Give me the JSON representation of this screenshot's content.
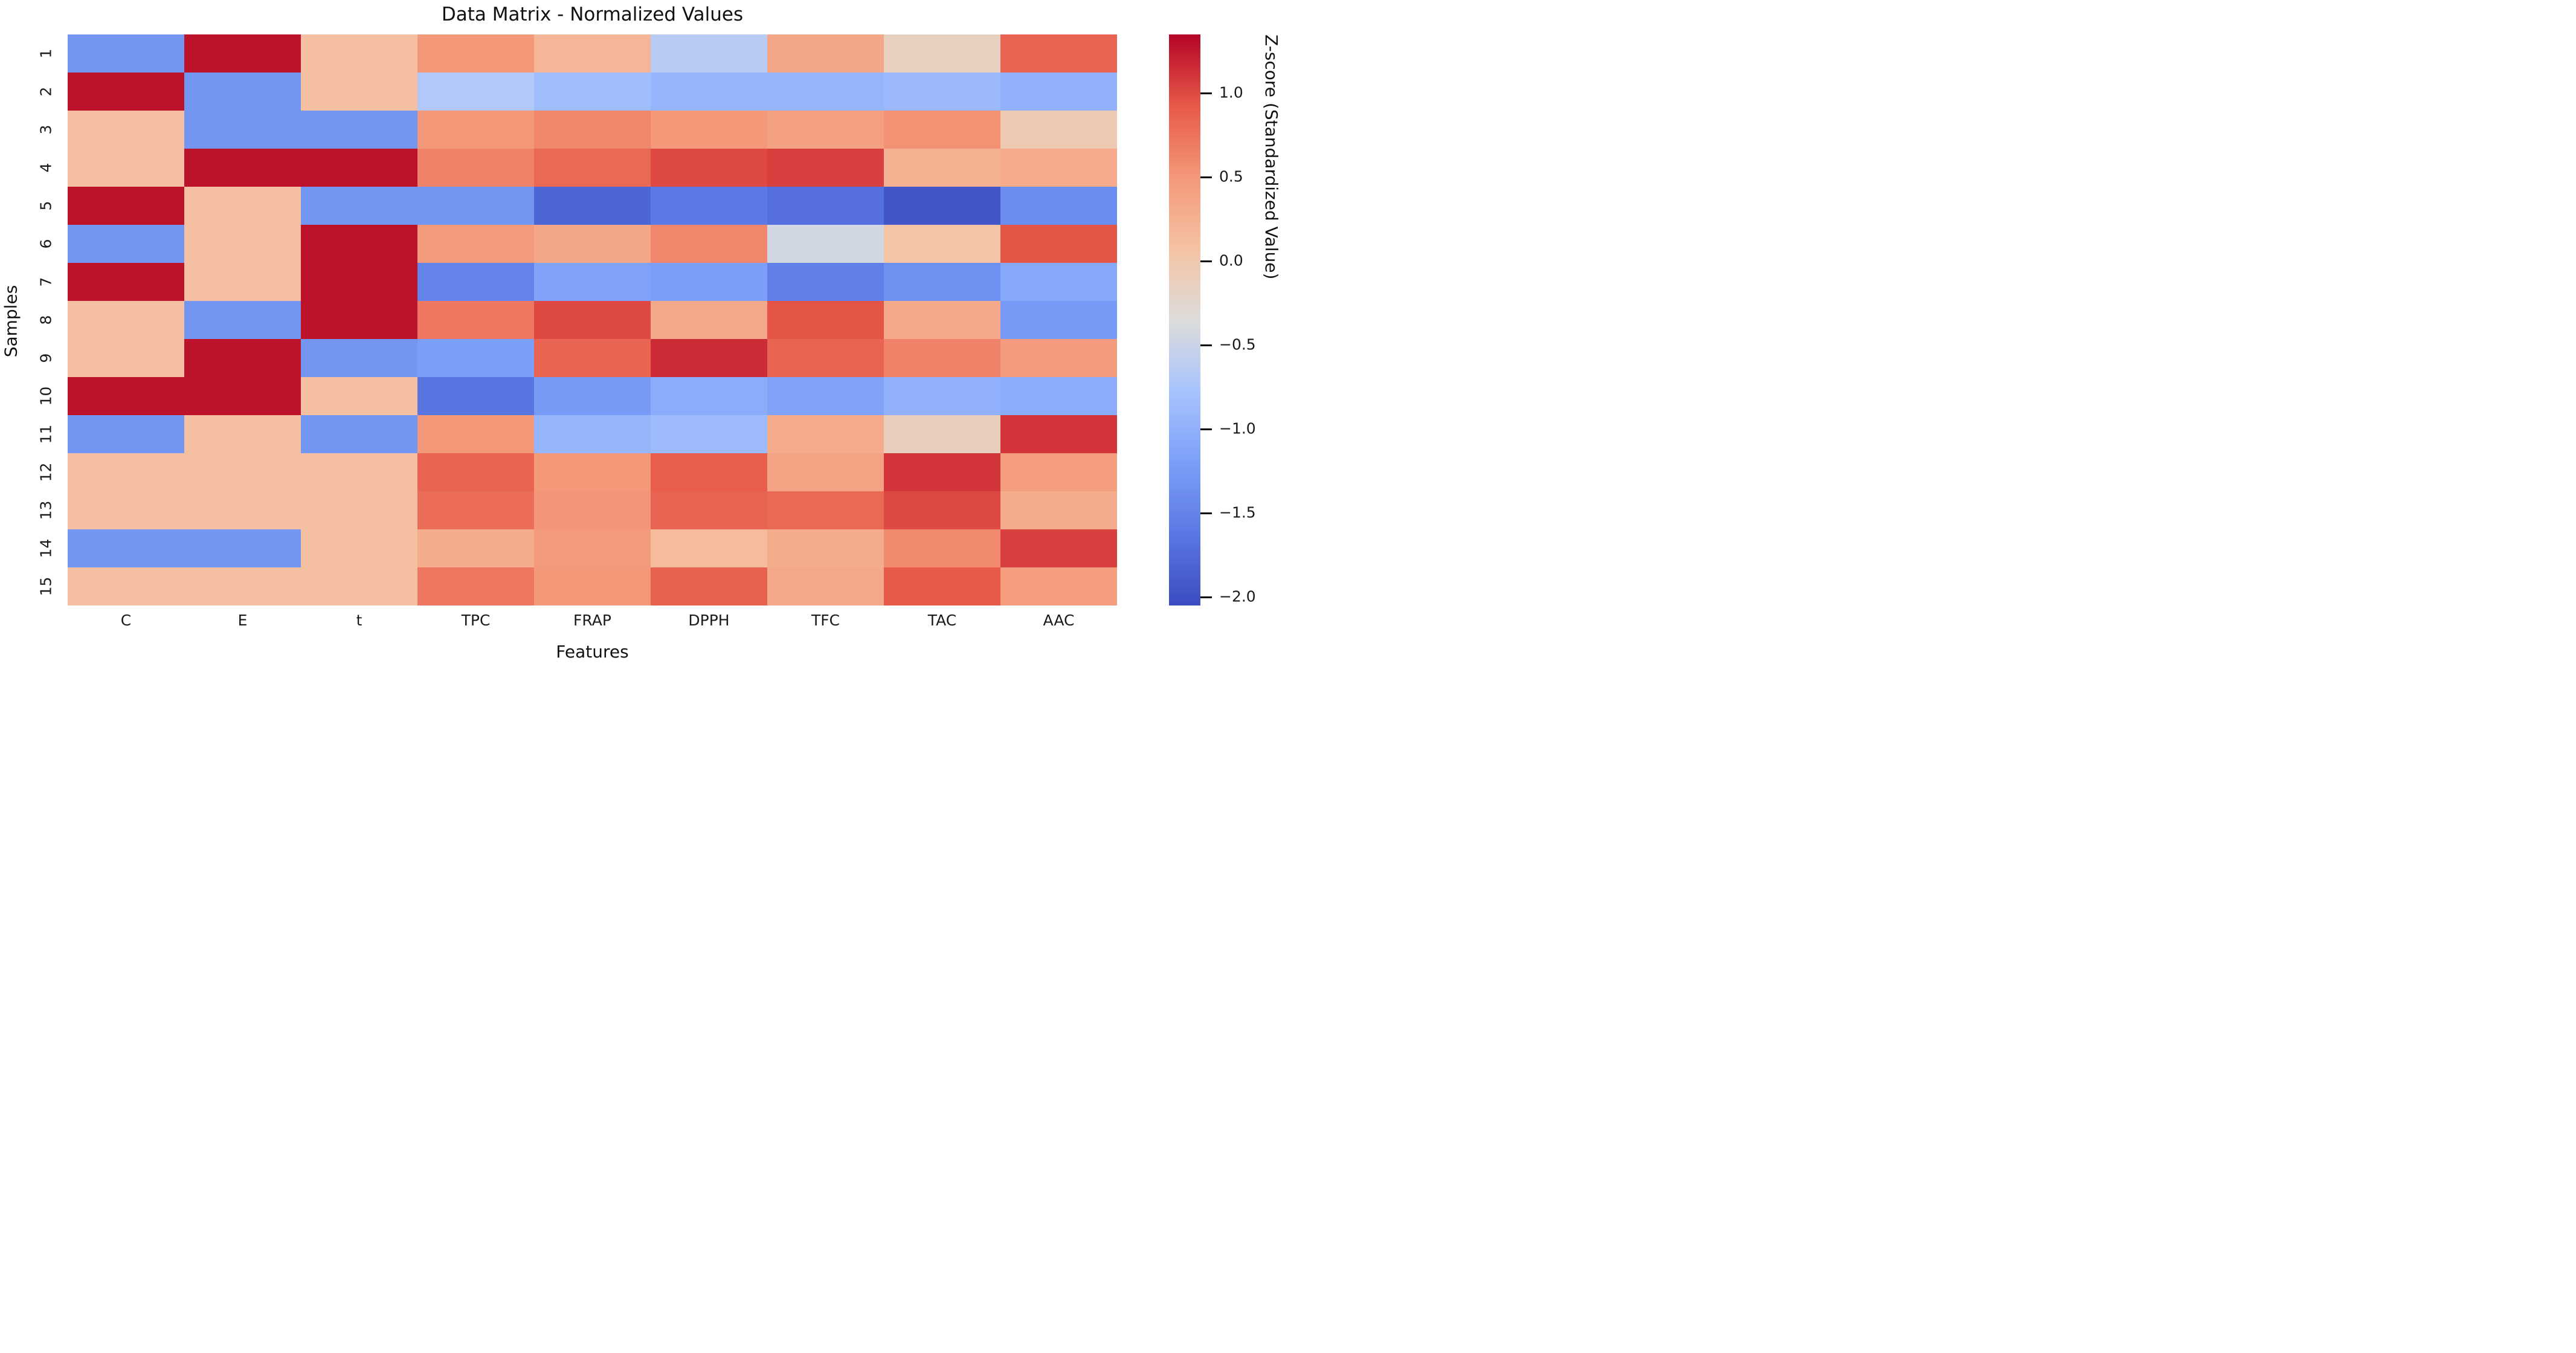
{
  "figure": {
    "title": "Data Matrix - Normalized Values",
    "x_axis_label": "Features",
    "y_axis_label": "Samples"
  },
  "chart_data": {
    "type": "heatmap",
    "title": "Data Matrix - Normalized Values",
    "xlabel": "Features",
    "ylabel": "Samples",
    "columns": [
      "C",
      "E",
      "t",
      "TPC",
      "FRAP",
      "DPPH",
      "TFC",
      "TAC",
      "AAC"
    ],
    "rows": [
      "1",
      "2",
      "3",
      "4",
      "5",
      "6",
      "7",
      "8",
      "9",
      "10",
      "11",
      "12",
      "13",
      "14",
      "15"
    ],
    "values": [
      [
        -1.3,
        1.28,
        0.1,
        0.5,
        0.2,
        -0.65,
        0.35,
        -0.15,
        0.85
      ],
      [
        1.28,
        -1.3,
        0.1,
        -0.7,
        -0.85,
        -0.95,
        -0.95,
        -0.9,
        -1.0
      ],
      [
        0.1,
        -1.3,
        -1.3,
        0.5,
        0.62,
        0.5,
        0.42,
        0.55,
        -0.05
      ],
      [
        0.1,
        1.28,
        1.28,
        0.65,
        0.82,
        1.0,
        1.05,
        0.25,
        0.32
      ],
      [
        1.28,
        0.1,
        -1.3,
        -1.3,
        -1.8,
        -1.6,
        -1.7,
        -1.95,
        -1.4
      ],
      [
        -1.3,
        0.1,
        1.28,
        0.48,
        0.35,
        0.62,
        -0.45,
        0.05,
        0.95
      ],
      [
        1.28,
        0.1,
        1.28,
        -1.5,
        -1.15,
        -1.2,
        -1.55,
        -1.35,
        -1.1
      ],
      [
        0.1,
        -1.3,
        1.28,
        0.72,
        1.0,
        0.33,
        0.95,
        0.33,
        -1.25
      ],
      [
        0.1,
        1.28,
        -1.3,
        -1.2,
        0.85,
        1.15,
        0.85,
        0.65,
        0.47
      ],
      [
        1.28,
        1.28,
        0.1,
        -1.65,
        -1.25,
        -1.05,
        -1.15,
        -1.0,
        -1.05
      ],
      [
        -1.3,
        0.1,
        -1.3,
        0.5,
        -0.95,
        -0.88,
        0.32,
        -0.12,
        1.1
      ],
      [
        0.1,
        0.1,
        0.1,
        0.85,
        0.5,
        0.9,
        0.4,
        1.1,
        0.45
      ],
      [
        0.1,
        0.1,
        0.1,
        0.8,
        0.52,
        0.85,
        0.82,
        1.0,
        0.3
      ],
      [
        -1.3,
        -1.3,
        0.1,
        0.3,
        0.48,
        0.15,
        0.3,
        0.6,
        1.05
      ],
      [
        0.1,
        0.1,
        0.1,
        0.72,
        0.5,
        0.88,
        0.33,
        0.92,
        0.45
      ]
    ],
    "vmin": -2.05,
    "vmax": 1.35,
    "colormap": {
      "name": "coolwarm",
      "stops": [
        {
          "t": 0.0,
          "color": "#3B4CC0"
        },
        {
          "t": 0.125,
          "color": "#5A78E4"
        },
        {
          "t": 0.25,
          "color": "#7B9FF8"
        },
        {
          "t": 0.375,
          "color": "#A8C4FE"
        },
        {
          "t": 0.5,
          "color": "#DDDCDB"
        },
        {
          "t": 0.625,
          "color": "#F5C3A3"
        },
        {
          "t": 0.75,
          "color": "#F4987A"
        },
        {
          "t": 0.875,
          "color": "#E75949"
        },
        {
          "t": 1.0,
          "color": "#B40426"
        }
      ]
    },
    "colorbar": {
      "label": "Z-score (Standardized Value)",
      "ticks": [
        {
          "v": 1.0,
          "label": "1.0"
        },
        {
          "v": 0.5,
          "label": "0.5"
        },
        {
          "v": 0.0,
          "label": "0.0"
        },
        {
          "v": -0.5,
          "label": "−0.5"
        },
        {
          "v": -1.0,
          "label": "−1.0"
        },
        {
          "v": -1.5,
          "label": "−1.5"
        },
        {
          "v": -2.0,
          "label": "−2.0"
        }
      ]
    },
    "legend_position": "right",
    "grid": false
  }
}
